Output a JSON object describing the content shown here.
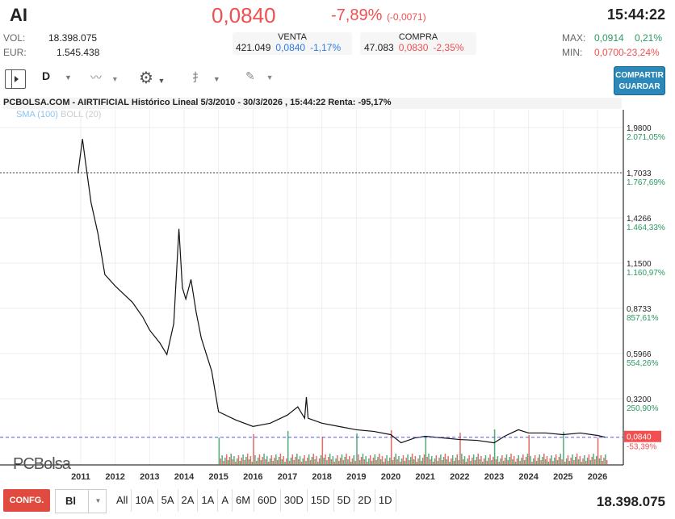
{
  "header": {
    "ticker": "AI",
    "price": "0,0840",
    "change_pct": "-7,89%",
    "change_abs": "(-0,0071)",
    "time": "15:44:22"
  },
  "stats": {
    "vol_label": "VOL:",
    "vol": "18.398.075",
    "eur_label": "EUR:",
    "eur": "1.545.438",
    "venta": {
      "label": "VENTA",
      "qty": "421.049",
      "price": "0,0840",
      "pct": "-1,17%"
    },
    "compra": {
      "label": "COMPRA",
      "qty": "47.083",
      "price": "0,0830",
      "pct": "-2,35%"
    },
    "max_label": "MAX:",
    "max": "0,0914",
    "max_pct": "0,21%",
    "min_label": "MIN:",
    "min": "0,0700",
    "min_pct": "-23,24%"
  },
  "toolbar": {
    "period": "D",
    "share_line1": "COMPARTIR",
    "share_line2": "GUARDAR"
  },
  "chart_title": "PCBOLSA.COM - AIRTIFICIAL Histórico Lineal 5/3/2010 - 30/3/2026 , 15:44:22 Renta: -95,17%",
  "legend": {
    "sma": "SMA (100)",
    "boll": "BOLL (20)"
  },
  "logo": "PCBolsa",
  "chart_data": {
    "type": "line",
    "xlim": [
      2010.2,
      2026.7
    ],
    "ylim": [
      0.0,
      2.05
    ],
    "x_ticks": [
      "2011",
      "2012",
      "2013",
      "2014",
      "2015",
      "2016",
      "2017",
      "2018",
      "2019",
      "2020",
      "2021",
      "2022",
      "2023",
      "2024",
      "2025",
      "2026"
    ],
    "y_ticks": [
      {
        "v": "1,9800",
        "p": "2.071,05%"
      },
      {
        "v": "1,7033",
        "p": "1.767,69%"
      },
      {
        "v": "1,4266",
        "p": "1.464,33%"
      },
      {
        "v": "1,1500",
        "p": "1.160,97%"
      },
      {
        "v": "0,8733",
        "p": "857,61%"
      },
      {
        "v": "0,5966",
        "p": "554,26%"
      },
      {
        "v": "0,3200",
        "p": "250,90%"
      }
    ],
    "last": {
      "v": "0,0840",
      "p": "-53,39%"
    },
    "reference_line": 1.7033,
    "points": [
      [
        2010.92,
        1.7
      ],
      [
        2010.97,
        1.78
      ],
      [
        2011.05,
        1.91
      ],
      [
        2011.15,
        1.75
      ],
      [
        2011.3,
        1.52
      ],
      [
        2011.5,
        1.33
      ],
      [
        2011.7,
        1.08
      ],
      [
        2012.0,
        1.01
      ],
      [
        2012.3,
        0.95
      ],
      [
        2012.5,
        0.91
      ],
      [
        2012.8,
        0.82
      ],
      [
        2013.0,
        0.74
      ],
      [
        2013.3,
        0.66
      ],
      [
        2013.5,
        0.59
      ],
      [
        2013.7,
        0.78
      ],
      [
        2013.85,
        1.36
      ],
      [
        2013.95,
        1.0
      ],
      [
        2014.05,
        0.93
      ],
      [
        2014.2,
        1.05
      ],
      [
        2014.35,
        0.85
      ],
      [
        2014.5,
        0.69
      ],
      [
        2014.8,
        0.49
      ],
      [
        2015.0,
        0.24
      ],
      [
        2015.5,
        0.19
      ],
      [
        2016.0,
        0.15
      ],
      [
        2016.5,
        0.17
      ],
      [
        2017.0,
        0.22
      ],
      [
        2017.3,
        0.27
      ],
      [
        2017.5,
        0.2
      ],
      [
        2017.55,
        0.33
      ],
      [
        2017.6,
        0.2
      ],
      [
        2018.0,
        0.17
      ],
      [
        2018.5,
        0.15
      ],
      [
        2019.0,
        0.13
      ],
      [
        2019.5,
        0.12
      ],
      [
        2020.0,
        0.1
      ],
      [
        2020.3,
        0.05
      ],
      [
        2020.7,
        0.08
      ],
      [
        2021.0,
        0.09
      ],
      [
        2021.5,
        0.08
      ],
      [
        2022.0,
        0.07
      ],
      [
        2022.5,
        0.065
      ],
      [
        2023.0,
        0.05
      ],
      [
        2023.3,
        0.09
      ],
      [
        2023.7,
        0.13
      ],
      [
        2024.0,
        0.11
      ],
      [
        2024.5,
        0.11
      ],
      [
        2025.0,
        0.1
      ],
      [
        2025.5,
        0.11
      ],
      [
        2026.0,
        0.095
      ],
      [
        2026.23,
        0.084
      ]
    ]
  },
  "bottom": {
    "config": "CONFG.",
    "scale": "Bl",
    "ranges": [
      "All",
      "10A",
      "5A",
      "2A",
      "1A",
      "A",
      "6M",
      "60D",
      "30D",
      "15D",
      "5D",
      "2D",
      "1D"
    ],
    "volume": "18.398.075"
  },
  "colors": {
    "down": "#f05050",
    "up": "#2a9a60",
    "accent": "#2c88b8"
  }
}
